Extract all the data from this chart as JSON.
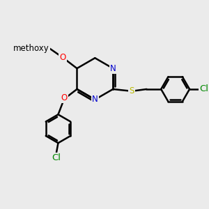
{
  "background_color": "#ebebeb",
  "bond_color": "#000000",
  "bond_width": 1.8,
  "atom_colors": {
    "N": "#0000cc",
    "O": "#ff0000",
    "S": "#bbbb00",
    "Cl": "#008800",
    "C": "#000000"
  },
  "font_size": 8.5,
  "figsize": [
    3.0,
    3.0
  ],
  "dpi": 100
}
